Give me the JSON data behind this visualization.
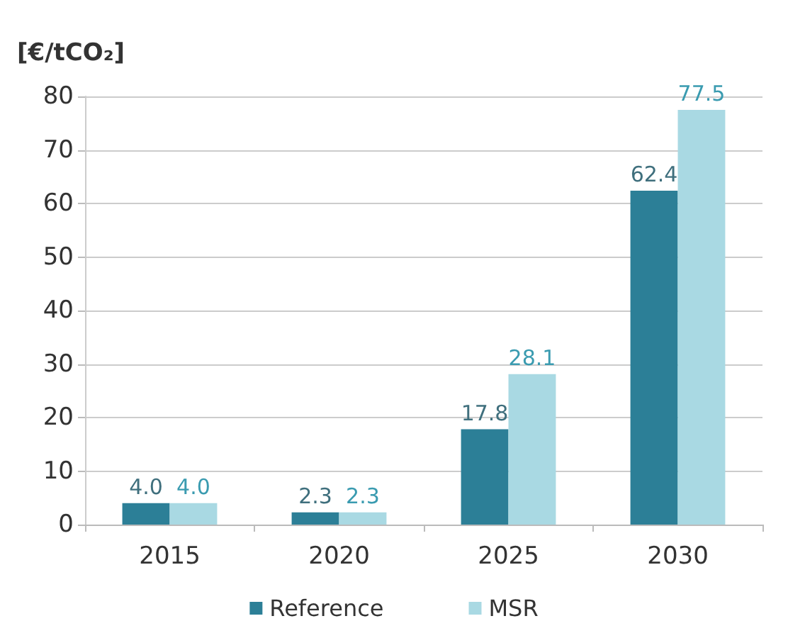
{
  "chart_data": {
    "type": "bar",
    "ylabel": "[€/tCO₂]",
    "categories": [
      "2015",
      "2020",
      "2025",
      "2030"
    ],
    "series": [
      {
        "name": "Reference",
        "color": "#2c7f97",
        "values": [
          4.0,
          2.3,
          17.8,
          62.4
        ],
        "value_labels": [
          "4.0",
          "2.3",
          "17.8",
          "62.4"
        ]
      },
      {
        "name": "MSR",
        "color": "#a9d9e3",
        "values": [
          4.0,
          2.3,
          28.1,
          77.5
        ],
        "value_labels": [
          "4.0",
          "2.3",
          "28.1",
          "77.5"
        ]
      }
    ],
    "ylim": [
      0,
      80
    ],
    "yticks": [
      0,
      10,
      20,
      30,
      40,
      50,
      60,
      70,
      80
    ],
    "grid": "y",
    "legend": "bottom"
  }
}
